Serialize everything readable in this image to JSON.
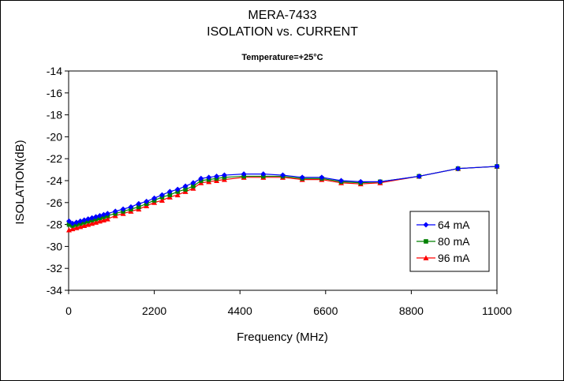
{
  "chart_data": {
    "type": "line",
    "title": "MERA-7433",
    "title2": "ISOLATION vs. CURRENT",
    "subtitle": "Temperature=+25°C",
    "xlabel": "Frequency (MHz)",
    "ylabel": "ISOLATION(dB)",
    "xlim": [
      0,
      11000
    ],
    "ylim": [
      -34,
      -14
    ],
    "xticks": [
      0,
      2200,
      4400,
      6600,
      8800,
      11000
    ],
    "yticks": [
      -14,
      -16,
      -18,
      -20,
      -22,
      -24,
      -26,
      -28,
      -30,
      -32,
      -34
    ],
    "grid": false,
    "legend_position": "right",
    "series": [
      {
        "name": "64 mA",
        "color": "#0000ff",
        "marker": "diamond",
        "x": [
          10,
          100,
          200,
          300,
          400,
          500,
          600,
          700,
          800,
          900,
          1000,
          1200,
          1400,
          1600,
          1800,
          2000,
          2200,
          2400,
          2600,
          2800,
          3000,
          3200,
          3400,
          3600,
          3800,
          4000,
          4500,
          5000,
          5500,
          6000,
          6500,
          7000,
          7500,
          8000,
          9000,
          10000,
          11000
        ],
        "values": [
          -27.7,
          -27.9,
          -27.8,
          -27.7,
          -27.6,
          -27.5,
          -27.4,
          -27.3,
          -27.2,
          -27.1,
          -27.0,
          -26.8,
          -26.6,
          -26.4,
          -26.1,
          -25.9,
          -25.6,
          -25.3,
          -25.0,
          -24.8,
          -24.5,
          -24.2,
          -23.8,
          -23.7,
          -23.6,
          -23.5,
          -23.4,
          -23.4,
          -23.5,
          -23.7,
          -23.7,
          -24.0,
          -24.1,
          -24.1,
          -23.6,
          -22.9,
          -22.7
        ]
      },
      {
        "name": "80 mA",
        "color": "#008000",
        "marker": "square",
        "x": [
          10,
          100,
          200,
          300,
          400,
          500,
          600,
          700,
          800,
          900,
          1000,
          1200,
          1400,
          1600,
          1800,
          2000,
          2200,
          2400,
          2600,
          2800,
          3000,
          3200,
          3400,
          3600,
          3800,
          4000,
          4500,
          5000,
          5500,
          6000,
          6500,
          7000,
          7500,
          8000,
          9000,
          10000,
          11000
        ],
        "values": [
          -28.0,
          -28.1,
          -28.0,
          -27.9,
          -27.8,
          -27.7,
          -27.6,
          -27.5,
          -27.4,
          -27.3,
          -27.2,
          -27.0,
          -26.8,
          -26.6,
          -26.4,
          -26.1,
          -25.8,
          -25.5,
          -25.3,
          -25.0,
          -24.8,
          -24.5,
          -24.0,
          -23.9,
          -23.8,
          -23.7,
          -23.6,
          -23.6,
          -23.6,
          -23.8,
          -23.8,
          -24.1,
          -24.2,
          -24.1,
          -23.6,
          -22.9,
          -22.7
        ]
      },
      {
        "name": "96 mA",
        "color": "#ff0000",
        "marker": "triangle",
        "x": [
          10,
          100,
          200,
          300,
          400,
          500,
          600,
          700,
          800,
          900,
          1000,
          1200,
          1400,
          1600,
          1800,
          2000,
          2200,
          2400,
          2600,
          2800,
          3000,
          3200,
          3400,
          3600,
          3800,
          4000,
          4500,
          5000,
          5500,
          6000,
          6500,
          7000,
          7500,
          8000,
          9000,
          10000,
          11000
        ],
        "values": [
          -28.5,
          -28.4,
          -28.3,
          -28.2,
          -28.1,
          -28.0,
          -27.9,
          -27.8,
          -27.7,
          -27.6,
          -27.5,
          -27.2,
          -27.0,
          -26.8,
          -26.6,
          -26.3,
          -26.0,
          -25.8,
          -25.5,
          -25.3,
          -25.0,
          -24.7,
          -24.2,
          -24.1,
          -24.0,
          -23.9,
          -23.7,
          -23.7,
          -23.7,
          -23.9,
          -23.9,
          -24.2,
          -24.3,
          -24.2,
          -23.6,
          -22.9,
          -22.7
        ]
      }
    ]
  }
}
